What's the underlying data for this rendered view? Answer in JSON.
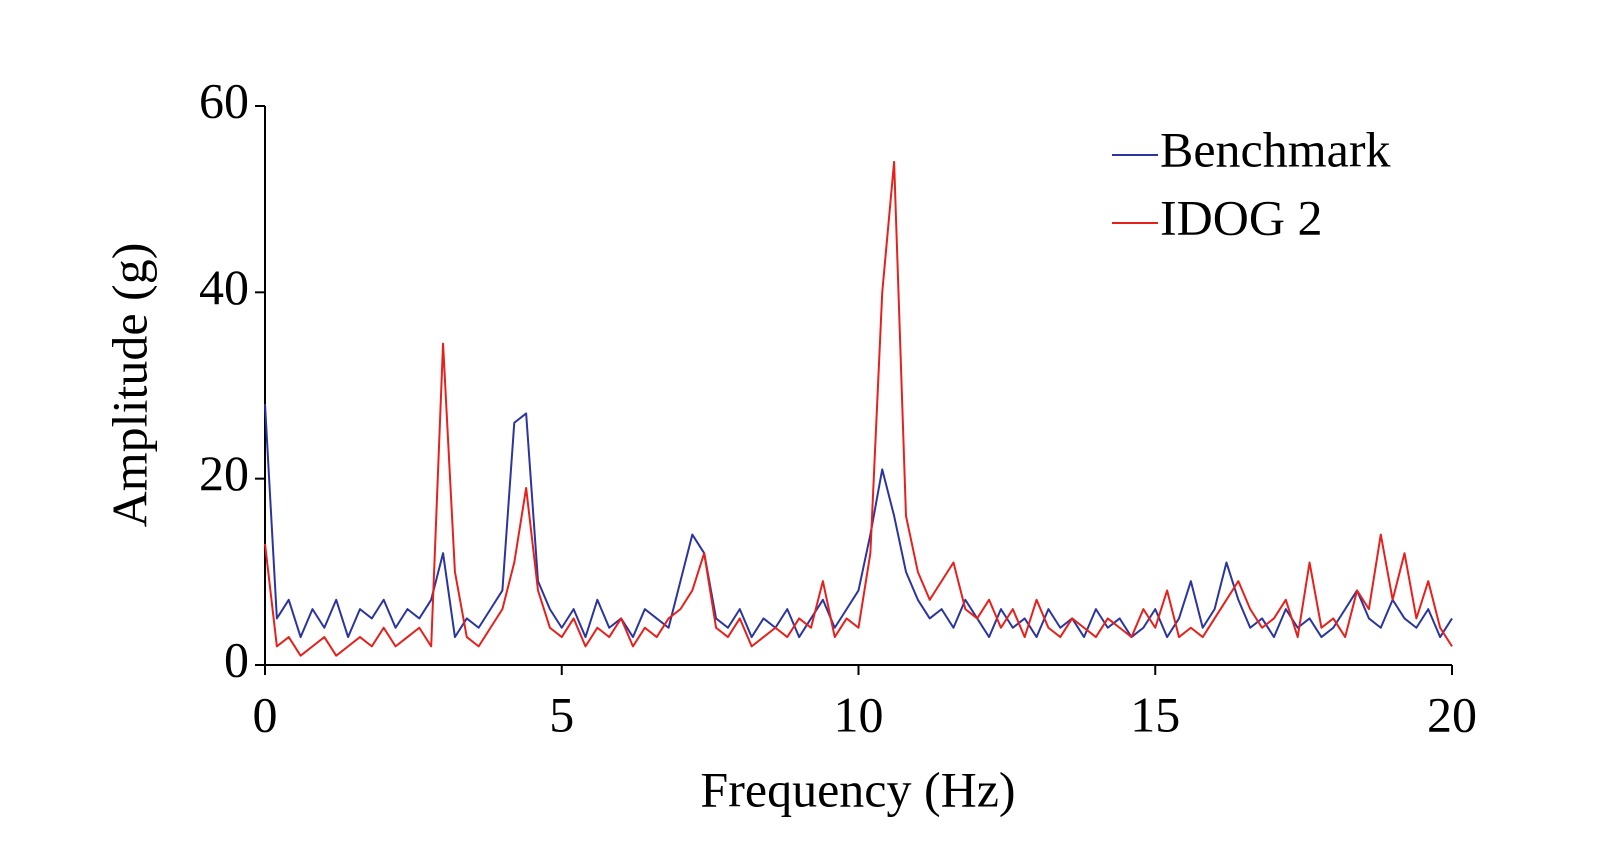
{
  "chart_data": {
    "type": "line",
    "x_label": "Frequency (Hz)",
    "y_label": "Amplitude (g)",
    "x": [
      0,
      0.2,
      0.4,
      0.6,
      0.8,
      1.0,
      1.2,
      1.4,
      1.6,
      1.8,
      2.0,
      2.2,
      2.4,
      2.6,
      2.8,
      3.0,
      3.2,
      3.4,
      3.6,
      3.8,
      4.0,
      4.2,
      4.4,
      4.6,
      4.8,
      5.0,
      5.2,
      5.4,
      5.6,
      5.8,
      6.0,
      6.2,
      6.4,
      6.6,
      6.8,
      7.0,
      7.2,
      7.4,
      7.6,
      7.8,
      8.0,
      8.2,
      8.4,
      8.6,
      8.8,
      9.0,
      9.2,
      9.4,
      9.6,
      9.8,
      10.0,
      10.2,
      10.4,
      10.6,
      10.8,
      11.0,
      11.2,
      11.4,
      11.6,
      11.8,
      12.0,
      12.2,
      12.4,
      12.6,
      12.8,
      13.0,
      13.2,
      13.4,
      13.6,
      13.8,
      14.0,
      14.2,
      14.4,
      14.6,
      14.8,
      15.0,
      15.2,
      15.4,
      15.6,
      15.8,
      16.0,
      16.2,
      16.4,
      16.6,
      16.8,
      17.0,
      17.2,
      17.4,
      17.6,
      17.8,
      18.0,
      18.2,
      18.4,
      18.6,
      18.8,
      19.0,
      19.2,
      19.4,
      19.6,
      19.8,
      20.0
    ],
    "series": [
      {
        "name": "Benchmark",
        "color": "#2b35a0",
        "values": [
          28,
          5,
          7,
          3,
          6,
          4,
          7,
          3,
          6,
          5,
          7,
          4,
          6,
          5,
          7,
          12,
          3,
          5,
          4,
          6,
          8,
          26,
          27,
          9,
          6,
          4,
          6,
          3,
          7,
          4,
          5,
          3,
          6,
          5,
          4,
          9,
          14,
          12,
          5,
          4,
          6,
          3,
          5,
          4,
          6,
          3,
          5,
          7,
          4,
          6,
          8,
          14,
          21,
          16,
          10,
          7,
          5,
          6,
          4,
          7,
          5,
          3,
          6,
          4,
          5,
          3,
          6,
          4,
          5,
          3,
          6,
          4,
          5,
          3,
          4,
          6,
          3,
          5,
          9,
          4,
          6,
          11,
          7,
          4,
          5,
          3,
          6,
          4,
          5,
          3,
          4,
          6,
          8,
          5,
          4,
          7,
          5,
          4,
          6,
          3,
          5
        ]
      },
      {
        "name": "IDOG 2",
        "color": "#e8201c",
        "values": [
          13,
          2,
          3,
          1,
          2,
          3,
          1,
          2,
          3,
          2,
          4,
          2,
          3,
          4,
          2,
          34.5,
          10,
          3,
          2,
          4,
          6,
          11,
          19,
          8,
          4,
          3,
          5,
          2,
          4,
          3,
          5,
          2,
          4,
          3,
          5,
          6,
          8,
          12,
          4,
          3,
          5,
          2,
          3,
          4,
          3,
          5,
          4,
          9,
          3,
          5,
          4,
          12,
          40,
          54,
          16,
          10,
          7,
          9,
          11,
          6,
          5,
          7,
          4,
          6,
          3,
          7,
          4,
          3,
          5,
          4,
          3,
          5,
          4,
          3,
          6,
          4,
          8,
          3,
          4,
          3,
          5,
          7,
          9,
          6,
          4,
          5,
          7,
          3,
          11,
          4,
          5,
          3,
          8,
          6,
          14,
          7,
          12,
          5,
          9,
          4,
          2
        ]
      }
    ],
    "xlim": [
      0,
      20
    ],
    "xticks": [
      0,
      5,
      10,
      15,
      20
    ],
    "ylim": [
      0,
      60
    ],
    "yticks": [
      0,
      20,
      40,
      60
    ],
    "grid": false,
    "legend": "top-right"
  }
}
